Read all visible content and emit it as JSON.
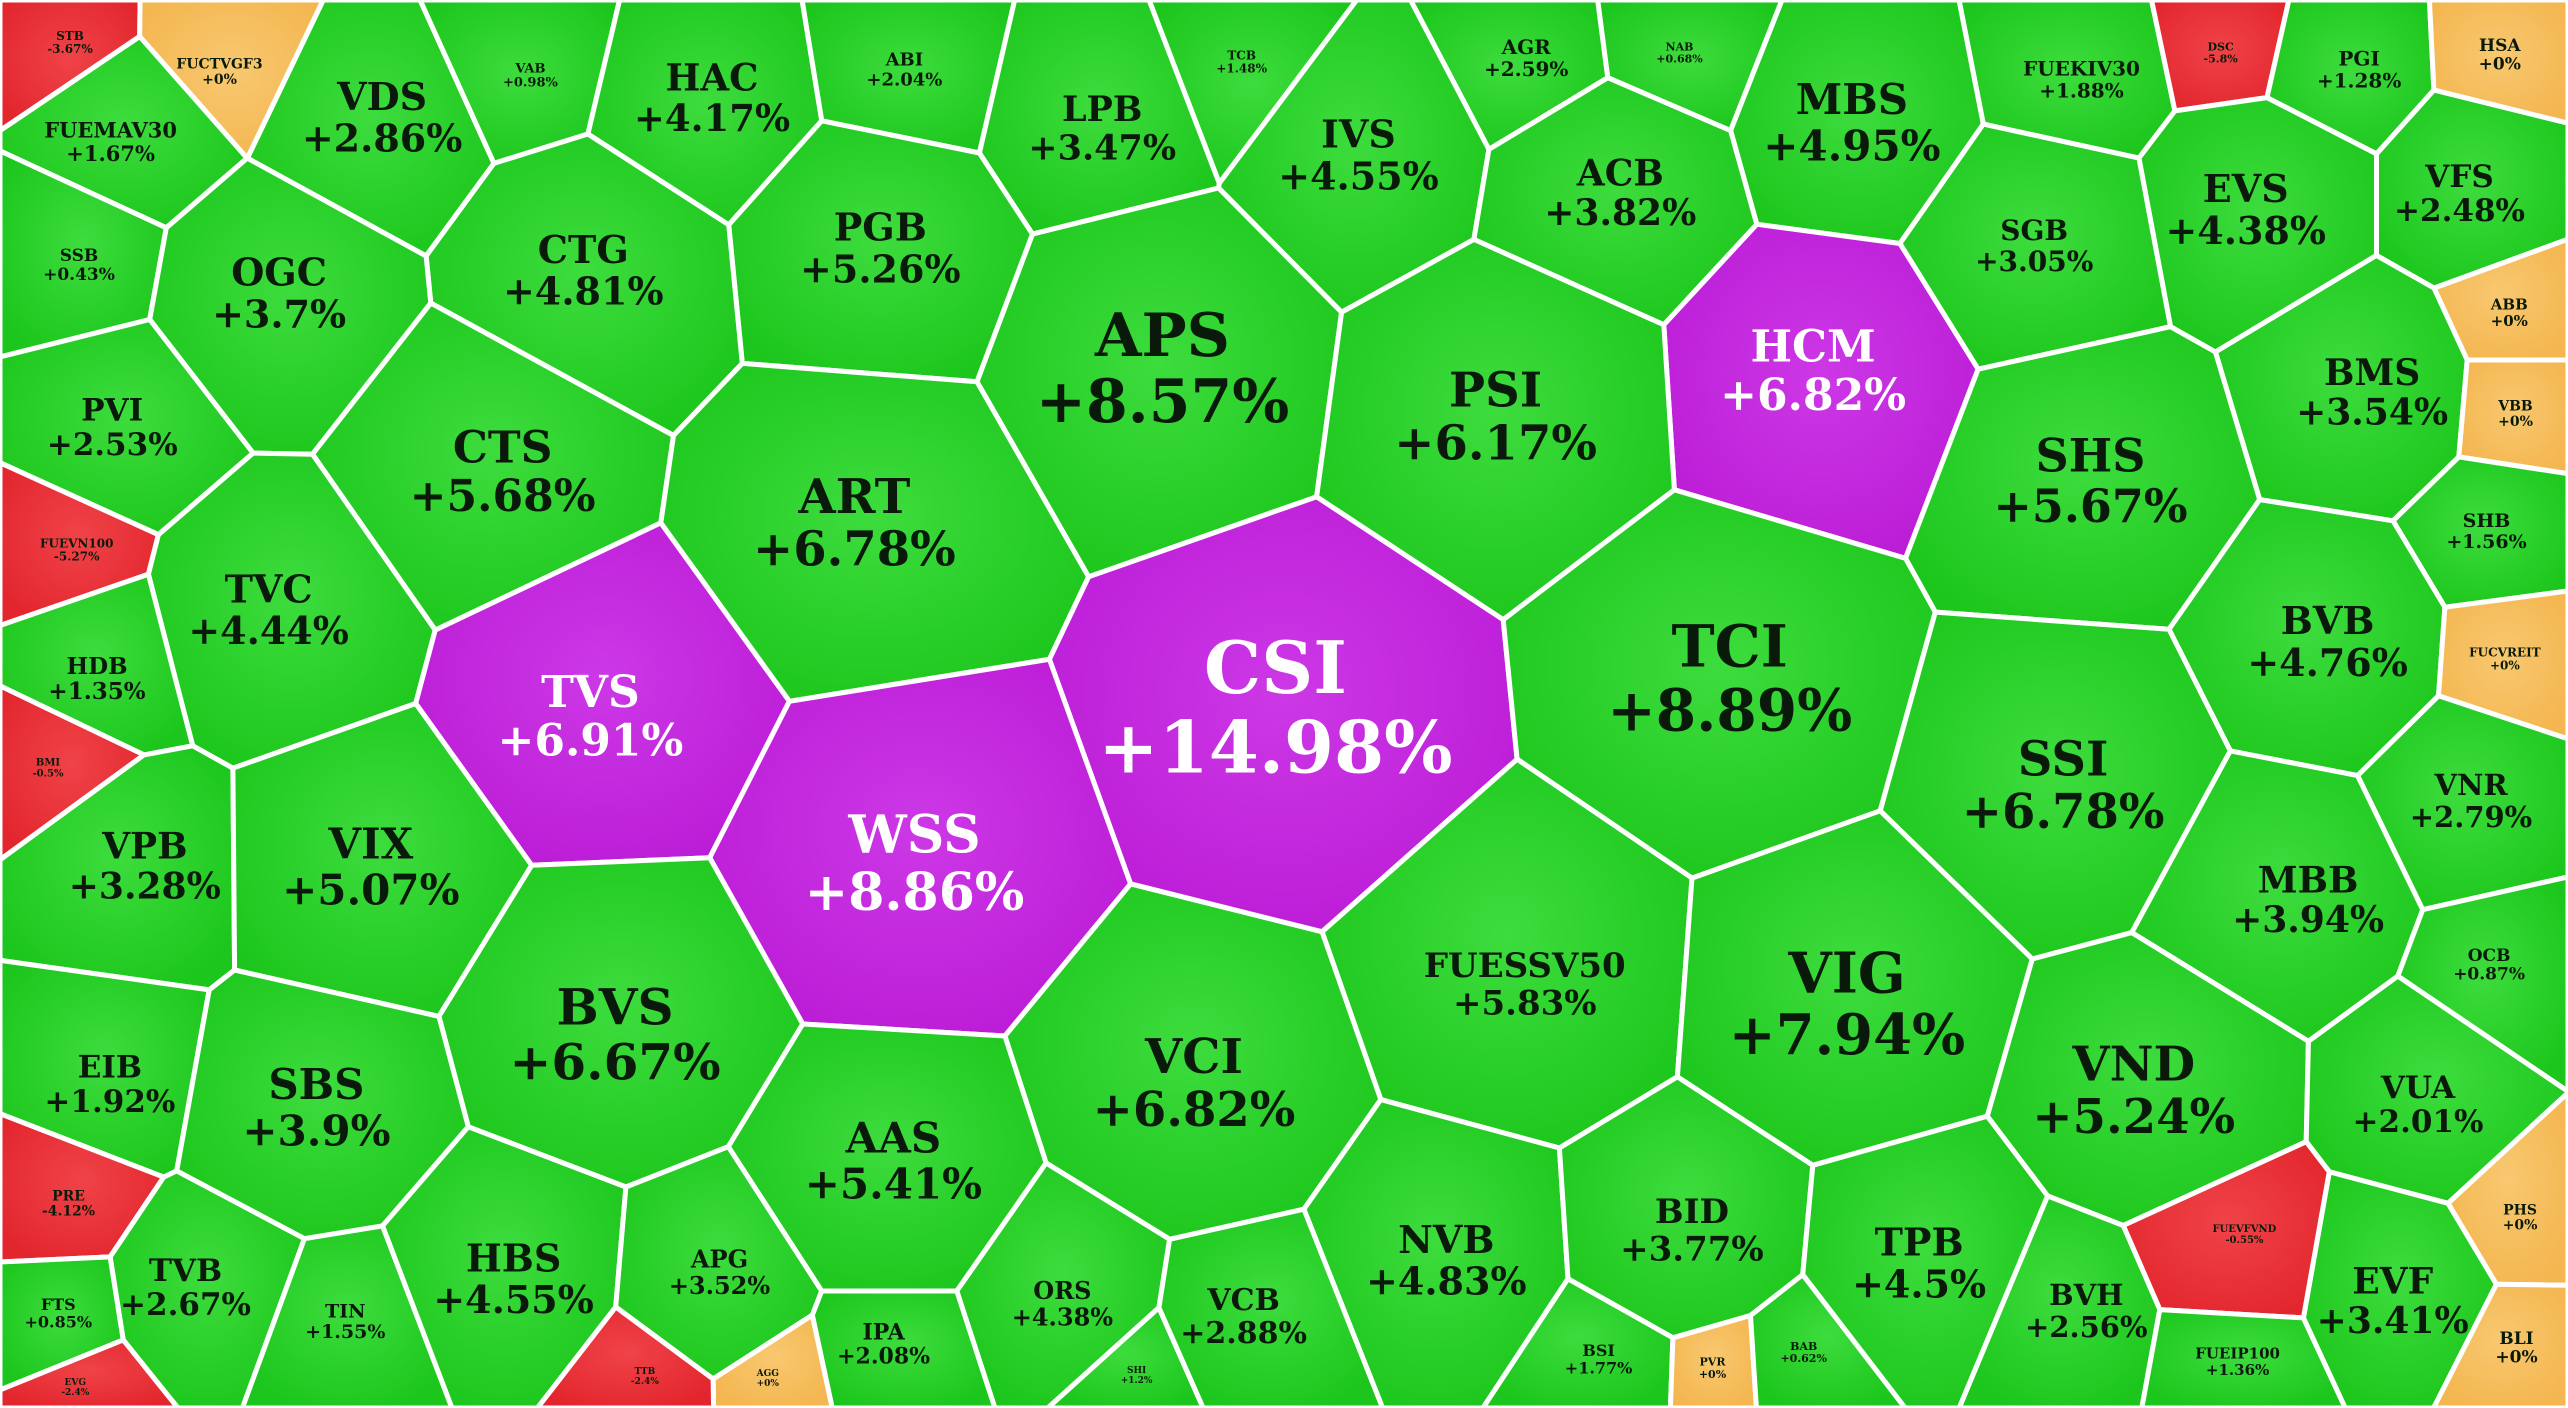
{
  "chart_data": {
    "type": "heatmap",
    "title": "",
    "colors": {
      "up": "#1cc61c",
      "up_light": "#3ddc3d",
      "ceiling": "#bb1cd6",
      "ceiling_light": "#cc38e6",
      "unchanged": "#f4b650",
      "unchanged_light": "#f8c870",
      "down": "#e3262e",
      "down_light": "#ef4348",
      "border": "#ffffff",
      "text_dark": "#0a1a0a",
      "text_light": "#ffffff"
    },
    "cells": [
      {
        "ticker": "STB",
        "change": "-3.67%",
        "value": -3.67,
        "status": "down"
      },
      {
        "ticker": "FUCTVGF3",
        "change": "+0%",
        "value": 0,
        "status": "unchanged"
      },
      {
        "ticker": "VAB",
        "change": "+0.98%",
        "value": 0.98,
        "status": "up"
      },
      {
        "ticker": "ABI",
        "change": "+2.04%",
        "value": 2.04,
        "status": "up"
      },
      {
        "ticker": "TCB",
        "change": "+1.48%",
        "value": 1.48,
        "status": "up"
      },
      {
        "ticker": "AGR",
        "change": "+2.59%",
        "value": 2.59,
        "status": "up"
      },
      {
        "ticker": "NAB",
        "change": "+0.68%",
        "value": 0.68,
        "status": "up"
      },
      {
        "ticker": "FUEKIV30",
        "change": "+1.88%",
        "value": 1.88,
        "status": "up"
      },
      {
        "ticker": "DSC",
        "change": "-5.8%",
        "value": -5.8,
        "status": "down"
      },
      {
        "ticker": "PGI",
        "change": "+1.28%",
        "value": 1.28,
        "status": "up"
      },
      {
        "ticker": "HSA",
        "change": "+0%",
        "value": 0,
        "status": "unchanged"
      },
      {
        "ticker": "VDS",
        "change": "+2.86%",
        "value": 2.86,
        "status": "up"
      },
      {
        "ticker": "HAC",
        "change": "+4.17%",
        "value": 4.17,
        "status": "up"
      },
      {
        "ticker": "LPB",
        "change": "+3.47%",
        "value": 3.47,
        "status": "up"
      },
      {
        "ticker": "IVS",
        "change": "+4.55%",
        "value": 4.55,
        "status": "up"
      },
      {
        "ticker": "MBS",
        "change": "+4.95%",
        "value": 4.95,
        "status": "up"
      },
      {
        "ticker": "FUEMAV30",
        "change": "+1.67%",
        "value": 1.67,
        "status": "up"
      },
      {
        "ticker": "ACB",
        "change": "+3.82%",
        "value": 3.82,
        "status": "up"
      },
      {
        "ticker": "EVS",
        "change": "+4.38%",
        "value": 4.38,
        "status": "up"
      },
      {
        "ticker": "VFS",
        "change": "+2.48%",
        "value": 2.48,
        "status": "up"
      },
      {
        "ticker": "SGB",
        "change": "+3.05%",
        "value": 3.05,
        "status": "up"
      },
      {
        "ticker": "PGB",
        "change": "+5.26%",
        "value": 5.26,
        "status": "up"
      },
      {
        "ticker": "CTG",
        "change": "+4.81%",
        "value": 4.81,
        "status": "up"
      },
      {
        "ticker": "SSB",
        "change": "+0.43%",
        "value": 0.43,
        "status": "up"
      },
      {
        "ticker": "OGC",
        "change": "+3.7%",
        "value": 3.7,
        "status": "up"
      },
      {
        "ticker": "APS",
        "change": "+8.57%",
        "value": 8.57,
        "status": "up"
      },
      {
        "ticker": "HCM",
        "change": "+6.82%",
        "value": 6.82,
        "status": "ceiling"
      },
      {
        "ticker": "PSI",
        "change": "+6.17%",
        "value": 6.17,
        "status": "up"
      },
      {
        "ticker": "ABB",
        "change": "+0%",
        "value": 0,
        "status": "unchanged"
      },
      {
        "ticker": "BMS",
        "change": "+3.54%",
        "value": 3.54,
        "status": "up"
      },
      {
        "ticker": "VBB",
        "change": "+0%",
        "value": 0,
        "status": "unchanged"
      },
      {
        "ticker": "PVI",
        "change": "+2.53%",
        "value": 2.53,
        "status": "up"
      },
      {
        "ticker": "CTS",
        "change": "+5.68%",
        "value": 5.68,
        "status": "up"
      },
      {
        "ticker": "ART",
        "change": "+6.78%",
        "value": 6.78,
        "status": "up"
      },
      {
        "ticker": "SHS",
        "change": "+5.67%",
        "value": 5.67,
        "status": "up"
      },
      {
        "ticker": "SHB",
        "change": "+1.56%",
        "value": 1.56,
        "status": "up"
      },
      {
        "ticker": "FUEVN100",
        "change": "-5.27%",
        "value": -5.27,
        "status": "down"
      },
      {
        "ticker": "TVC",
        "change": "+4.44%",
        "value": 4.44,
        "status": "up"
      },
      {
        "ticker": "CSI",
        "change": "+14.98%",
        "value": 14.98,
        "status": "ceiling"
      },
      {
        "ticker": "TCI",
        "change": "+8.89%",
        "value": 8.89,
        "status": "up"
      },
      {
        "ticker": "BVB",
        "change": "+4.76%",
        "value": 4.76,
        "status": "up"
      },
      {
        "ticker": "FUCVREIT",
        "change": "+0%",
        "value": 0,
        "status": "unchanged"
      },
      {
        "ticker": "HDB",
        "change": "+1.35%",
        "value": 1.35,
        "status": "up"
      },
      {
        "ticker": "TVS",
        "change": "+6.91%",
        "value": 6.91,
        "status": "ceiling"
      },
      {
        "ticker": "SSI",
        "change": "+6.78%",
        "value": 6.78,
        "status": "up"
      },
      {
        "ticker": "BMI",
        "change": "-0.5%",
        "value": -0.5,
        "status": "down"
      },
      {
        "ticker": "VNR",
        "change": "+2.79%",
        "value": 2.79,
        "status": "up"
      },
      {
        "ticker": "WSS",
        "change": "+8.86%",
        "value": 8.86,
        "status": "ceiling"
      },
      {
        "ticker": "VPB",
        "change": "+3.28%",
        "value": 3.28,
        "status": "up"
      },
      {
        "ticker": "VIX",
        "change": "+5.07%",
        "value": 5.07,
        "status": "up"
      },
      {
        "ticker": "MBB",
        "change": "+3.94%",
        "value": 3.94,
        "status": "up"
      },
      {
        "ticker": "OCB",
        "change": "+0.87%",
        "value": 0.87,
        "status": "up"
      },
      {
        "ticker": "FUESSV50",
        "change": "+5.83%",
        "value": 5.83,
        "status": "up"
      },
      {
        "ticker": "VIG",
        "change": "+7.94%",
        "value": 7.94,
        "status": "up"
      },
      {
        "ticker": "BVS",
        "change": "+6.67%",
        "value": 6.67,
        "status": "up"
      },
      {
        "ticker": "EIB",
        "change": "+1.92%",
        "value": 1.92,
        "status": "up"
      },
      {
        "ticker": "VCI",
        "change": "+6.82%",
        "value": 6.82,
        "status": "up"
      },
      {
        "ticker": "VND",
        "change": "+5.24%",
        "value": 5.24,
        "status": "up"
      },
      {
        "ticker": "VUA",
        "change": "+2.01%",
        "value": 2.01,
        "status": "up"
      },
      {
        "ticker": "SBS",
        "change": "+3.9%",
        "value": 3.9,
        "status": "up"
      },
      {
        "ticker": "AAS",
        "change": "+5.41%",
        "value": 5.41,
        "status": "up"
      },
      {
        "ticker": "PRE",
        "change": "-4.12%",
        "value": -4.12,
        "status": "down"
      },
      {
        "ticker": "PHS",
        "change": "+0%",
        "value": 0,
        "status": "unchanged"
      },
      {
        "ticker": "NVB",
        "change": "+4.83%",
        "value": 4.83,
        "status": "up"
      },
      {
        "ticker": "BID",
        "change": "+3.77%",
        "value": 3.77,
        "status": "up"
      },
      {
        "ticker": "TPB",
        "change": "+4.5%",
        "value": 4.5,
        "status": "up"
      },
      {
        "ticker": "HBS",
        "change": "+4.55%",
        "value": 4.55,
        "status": "up"
      },
      {
        "ticker": "TVB",
        "change": "+2.67%",
        "value": 2.67,
        "status": "up"
      },
      {
        "ticker": "APG",
        "change": "+3.52%",
        "value": 3.52,
        "status": "up"
      },
      {
        "ticker": "ORS",
        "change": "+4.38%",
        "value": 4.38,
        "status": "up"
      },
      {
        "ticker": "EVF",
        "change": "+3.41%",
        "value": 3.41,
        "status": "up"
      },
      {
        "ticker": "FUEVFVND",
        "change": "-0.55%",
        "value": -0.55,
        "status": "down"
      },
      {
        "ticker": "VCB",
        "change": "+2.88%",
        "value": 2.88,
        "status": "up"
      },
      {
        "ticker": "BVH",
        "change": "+2.56%",
        "value": 2.56,
        "status": "up"
      },
      {
        "ticker": "FTS",
        "change": "+0.85%",
        "value": 0.85,
        "status": "up"
      },
      {
        "ticker": "TIN",
        "change": "+1.55%",
        "value": 1.55,
        "status": "up"
      },
      {
        "ticker": "FUEIP100",
        "change": "+1.36%",
        "value": 1.36,
        "status": "up"
      },
      {
        "ticker": "BLI",
        "change": "+0%",
        "value": 0,
        "status": "unchanged"
      },
      {
        "ticker": "IPA",
        "change": "+2.08%",
        "value": 2.08,
        "status": "up"
      },
      {
        "ticker": "BSI",
        "change": "+1.77%",
        "value": 1.77,
        "status": "up"
      },
      {
        "ticker": "PVR",
        "change": "+0%",
        "value": 0,
        "status": "unchanged"
      },
      {
        "ticker": "BAB",
        "change": "+0.62%",
        "value": 0.62,
        "status": "up"
      },
      {
        "ticker": "AGG",
        "change": "+0%",
        "value": 0,
        "status": "unchanged"
      },
      {
        "ticker": "SHI",
        "change": "+1.2%",
        "value": 1.2,
        "status": "up"
      },
      {
        "ticker": "EVG",
        "change": "-2.4%",
        "value": -2.4,
        "status": "down"
      },
      {
        "ticker": "TTB",
        "change": "-2.4%",
        "value": -2.4,
        "status": "down"
      }
    ]
  }
}
